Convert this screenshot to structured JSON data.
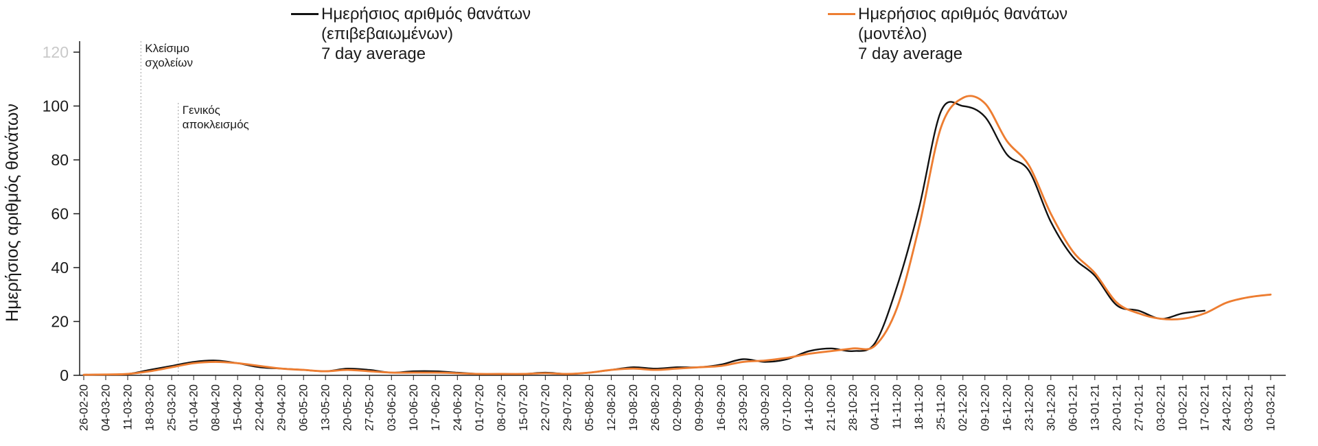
{
  "chart_data": {
    "type": "line",
    "title": "",
    "xlabel": "",
    "ylabel": "Ημερήσιος αριθμός θανάτων",
    "ylim": [
      0,
      120
    ],
    "yticks": [
      0,
      20,
      40,
      60,
      80,
      100,
      120
    ],
    "ytick_muted": 120,
    "grid": "off",
    "legend_position": "top",
    "categories": [
      "26-02-20",
      "04-03-20",
      "11-03-20",
      "18-03-20",
      "25-03-20",
      "01-04-20",
      "08-04-20",
      "15-04-20",
      "22-04-20",
      "29-04-20",
      "06-05-20",
      "13-05-20",
      "20-05-20",
      "27-05-20",
      "03-06-20",
      "10-06-20",
      "17-06-20",
      "24-06-20",
      "01-07-20",
      "08-07-20",
      "15-07-20",
      "22-07-20",
      "29-07-20",
      "05-08-20",
      "12-08-20",
      "19-08-20",
      "26-08-20",
      "02-09-20",
      "09-09-20",
      "16-09-20",
      "23-09-20",
      "30-09-20",
      "07-10-20",
      "14-10-20",
      "21-10-20",
      "28-10-20",
      "04-11-20",
      "11-11-20",
      "18-11-20",
      "25-11-20",
      "02-12-20",
      "09-12-20",
      "16-12-20",
      "23-12-20",
      "30-12-20",
      "06-01-21",
      "13-01-21",
      "20-01-21",
      "27-01-21",
      "03-02-21",
      "10-02-21",
      "17-02-21",
      "24-02-21",
      "03-03-21",
      "10-03-21"
    ],
    "series": [
      {
        "name": "confirmed",
        "legend_lines": [
          "Ημερήσιος αριθμός θανάτων",
          "(επιβεβαιωμένων)",
          "7 day average"
        ],
        "color": "#111111",
        "values": [
          0.2,
          0.3,
          0.5,
          2,
          3.5,
          5,
          5.5,
          4.5,
          3,
          2.5,
          2,
          1.5,
          2.5,
          2,
          1,
          1.5,
          1.5,
          1,
          0.5,
          0.5,
          0.5,
          1,
          0.5,
          1,
          2,
          3,
          2.5,
          3,
          3,
          4,
          6,
          5,
          6,
          9,
          10,
          9,
          12,
          33,
          62,
          98,
          100,
          96,
          82,
          76,
          57,
          44,
          37,
          26,
          24,
          21,
          23,
          24,
          null,
          null,
          null
        ]
      },
      {
        "name": "model",
        "legend_lines": [
          "Ημερήσιος αριθμός θανάτων",
          "(μοντέλο)",
          "7 day average"
        ],
        "color": "#ED7D31",
        "values": [
          0.2,
          0.3,
          0.5,
          1.5,
          3,
          4.5,
          5,
          4.5,
          3.5,
          2.5,
          2,
          1.5,
          2,
          1.5,
          1,
          1,
          1,
          0.8,
          0.5,
          0.5,
          0.5,
          0.8,
          0.5,
          1,
          2,
          2.5,
          2,
          2.5,
          3,
          3.5,
          5,
          5.5,
          6.5,
          8,
          9,
          10,
          11,
          25,
          55,
          92,
          103,
          101,
          87,
          78,
          60,
          46,
          38,
          27,
          23,
          21,
          21,
          23,
          27,
          29,
          30
        ]
      }
    ],
    "annotations": [
      {
        "lines": [
          "Κλείσιμο",
          "σχολείων"
        ],
        "x_index": 2.6
      },
      {
        "lines": [
          "Γενικός",
          "αποκλεισμός"
        ],
        "x_index": 4.3
      }
    ],
    "style": {
      "text_color": "#1a1a1a",
      "axis_color": "#1a1a1a",
      "muted_tick_color": "#c9c9c9",
      "annotation_line_color": "#9e9e9e"
    }
  }
}
